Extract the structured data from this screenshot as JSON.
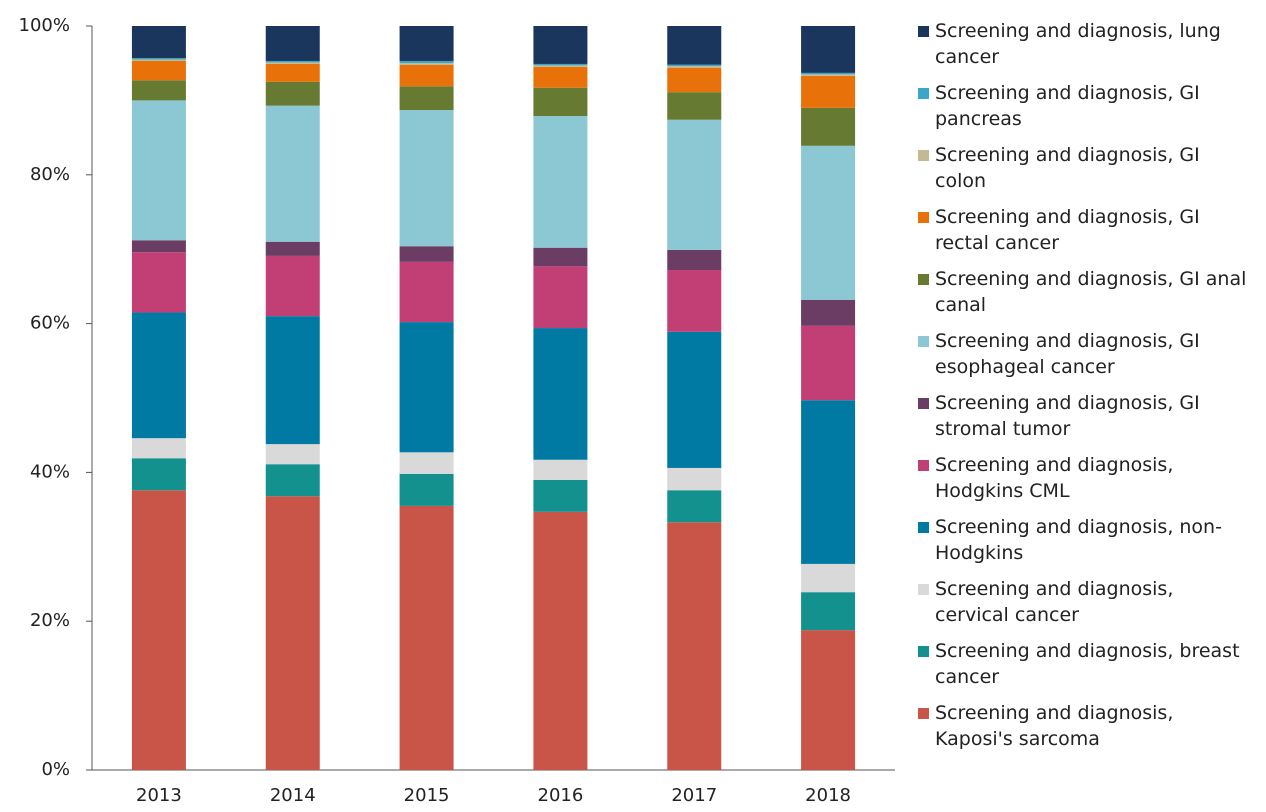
{
  "chart_data": {
    "type": "stacked_bar",
    "categories": [
      "2013",
      "2014",
      "2015",
      "2016",
      "2017",
      "2018"
    ],
    "ylim": [
      0,
      100
    ],
    "yticks": [
      {
        "value": 0,
        "label": "0%"
      },
      {
        "value": 20,
        "label": "20%"
      },
      {
        "value": 40,
        "label": "40%"
      },
      {
        "value": 60,
        "label": "60%"
      },
      {
        "value": 80,
        "label": "80%"
      },
      {
        "value": 100,
        "label": "100%"
      }
    ],
    "series": [
      {
        "name": "Screening and diagnosis, Kaposi's sarcoma",
        "color": "#c85548",
        "values": [
          37.6,
          36.8,
          35.5,
          34.7,
          33.3,
          18.8
        ]
      },
      {
        "name": "Screening and diagnosis, breast cancer",
        "color": "#13918e",
        "values": [
          4.3,
          4.3,
          4.3,
          4.3,
          4.3,
          5.1
        ]
      },
      {
        "name": "Screening and diagnosis, cervical cancer",
        "color": "#d9d9d9",
        "values": [
          2.7,
          2.7,
          2.9,
          2.7,
          3.0,
          3.8
        ]
      },
      {
        "name": "Screening and diagnosis, non-Hodgkins",
        "color": "#0079a3",
        "values": [
          16.9,
          17.2,
          17.5,
          17.7,
          18.3,
          22.0
        ]
      },
      {
        "name": "Screening and diagnosis, Hodgkins CML",
        "color": "#c23f75",
        "values": [
          8.1,
          8.1,
          8.1,
          8.3,
          8.3,
          10.0
        ]
      },
      {
        "name": "Screening and diagnosis, GI stromal tumor",
        "color": "#6b3d64",
        "values": [
          1.6,
          1.9,
          2.1,
          2.5,
          2.7,
          3.5
        ]
      },
      {
        "name": "Screening and diagnosis, GI esophageal cancer",
        "color": "#8bc8d3",
        "values": [
          18.8,
          18.3,
          18.3,
          17.7,
          17.5,
          20.7
        ]
      },
      {
        "name": "Screening and diagnosis, GI anal canal",
        "color": "#667a32",
        "values": [
          2.7,
          3.2,
          3.2,
          3.8,
          3.7,
          5.1
        ]
      },
      {
        "name": "Screening and diagnosis, GI rectal cancer",
        "color": "#e8710a",
        "values": [
          2.6,
          2.4,
          2.9,
          2.8,
          3.3,
          4.3
        ]
      },
      {
        "name": "Screening and diagnosis, GI colon",
        "color": "#c5b993",
        "values": [
          0.2,
          0.2,
          0.2,
          0.2,
          0.2,
          0.2
        ]
      },
      {
        "name": "Screening and diagnosis, GI pancreas",
        "color": "#3aa6c8",
        "values": [
          0.2,
          0.2,
          0.3,
          0.2,
          0.2,
          0.2
        ]
      },
      {
        "name": "Screening and diagnosis, lung cancer",
        "color": "#1b365d",
        "values": [
          4.3,
          4.7,
          4.7,
          5.1,
          5.2,
          6.3
        ]
      }
    ]
  }
}
